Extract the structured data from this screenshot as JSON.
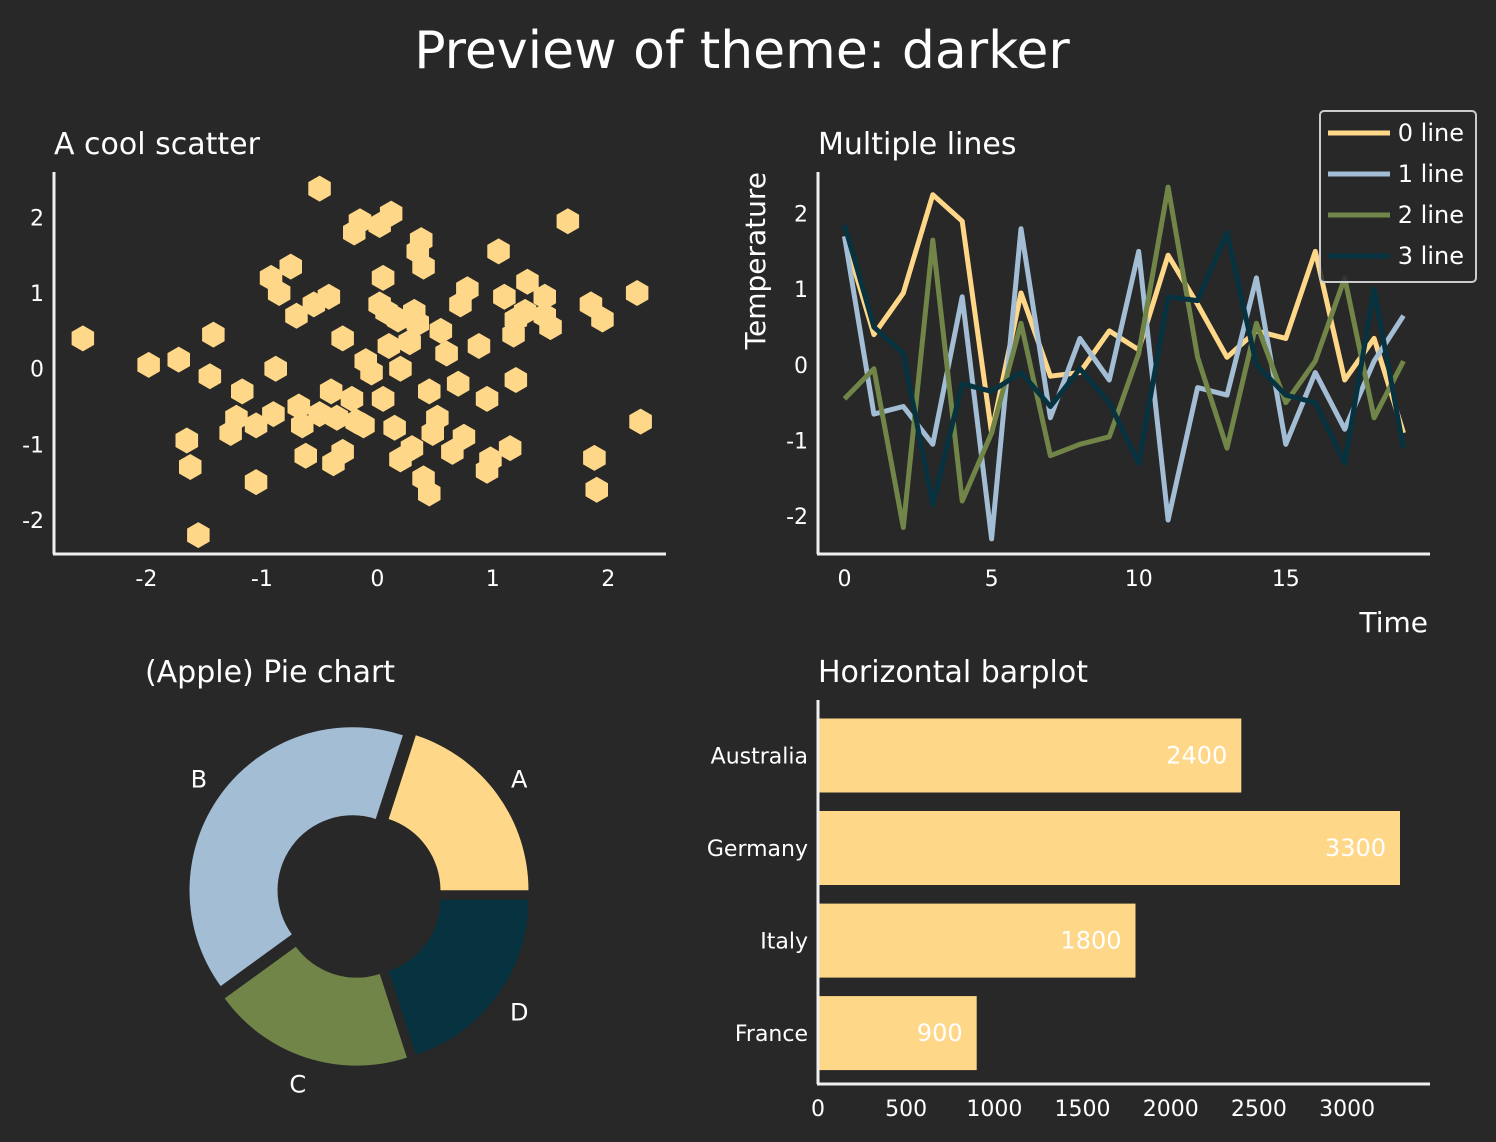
{
  "suptitle": "Preview of theme: darker",
  "colors": {
    "background": "#282828",
    "axis": "#f0f0f0",
    "palette": [
      "#ffd788",
      "#a3bdd5",
      "#718548",
      "#07323f"
    ]
  },
  "chart_data": [
    {
      "type": "scatter",
      "title": "A cool scatter",
      "xlabel": "",
      "ylabel": "",
      "xlim": [
        -2.8,
        2.5
      ],
      "ylim": [
        -2.45,
        2.6
      ],
      "xticks": [
        -2,
        -1,
        0,
        1,
        2
      ],
      "yticks": [
        -2,
        -1,
        0,
        1,
        2
      ],
      "marker": "hexagon",
      "color": "#ffd788",
      "points": [
        [
          -2.55,
          0.4
        ],
        [
          -1.98,
          0.05
        ],
        [
          -1.72,
          0.12
        ],
        [
          -1.42,
          0.45
        ],
        [
          -1.45,
          -0.1
        ],
        [
          -1.65,
          -0.95
        ],
        [
          -1.62,
          -1.3
        ],
        [
          -1.55,
          -2.2
        ],
        [
          -1.17,
          -0.3
        ],
        [
          -1.22,
          -0.65
        ],
        [
          -1.27,
          -0.85
        ],
        [
          -1.05,
          -0.75
        ],
        [
          -1.05,
          -1.5
        ],
        [
          -0.9,
          -0.6
        ],
        [
          -0.88,
          0.0
        ],
        [
          -0.92,
          1.2
        ],
        [
          -0.85,
          1.0
        ],
        [
          -0.75,
          1.35
        ],
        [
          -0.7,
          0.7
        ],
        [
          -0.68,
          -0.5
        ],
        [
          -0.65,
          -0.75
        ],
        [
          -0.62,
          -1.15
        ],
        [
          -0.5,
          -0.6
        ],
        [
          -0.5,
          2.38
        ],
        [
          -0.42,
          0.95
        ],
        [
          -0.4,
          -0.3
        ],
        [
          -0.35,
          -0.65
        ],
        [
          -0.38,
          -1.25
        ],
        [
          -0.3,
          -1.1
        ],
        [
          -0.3,
          0.4
        ],
        [
          -0.22,
          -0.4
        ],
        [
          -0.18,
          -0.7
        ],
        [
          -0.2,
          1.8
        ],
        [
          -0.15,
          1.95
        ],
        [
          -0.12,
          -0.75
        ],
        [
          -0.1,
          0.1
        ],
        [
          -0.05,
          -0.05
        ],
        [
          0.02,
          1.9
        ],
        [
          0.05,
          -0.4
        ],
        [
          0.02,
          0.85
        ],
        [
          0.05,
          1.2
        ],
        [
          0.08,
          0.75
        ],
        [
          0.1,
          0.3
        ],
        [
          0.12,
          2.05
        ],
        [
          0.15,
          -0.78
        ],
        [
          0.18,
          0.65
        ],
        [
          0.2,
          0.0
        ],
        [
          0.2,
          -1.2
        ],
        [
          0.28,
          0.35
        ],
        [
          0.3,
          -1.05
        ],
        [
          0.32,
          0.75
        ],
        [
          0.35,
          0.6
        ],
        [
          0.35,
          1.55
        ],
        [
          0.38,
          1.7
        ],
        [
          0.4,
          1.35
        ],
        [
          0.4,
          -1.45
        ],
        [
          0.45,
          -1.65
        ],
        [
          0.45,
          -0.3
        ],
        [
          0.48,
          -0.85
        ],
        [
          0.52,
          -0.65
        ],
        [
          0.55,
          0.5
        ],
        [
          0.65,
          -1.1
        ],
        [
          0.7,
          -0.2
        ],
        [
          0.72,
          0.85
        ],
        [
          0.78,
          1.05
        ],
        [
          0.75,
          -0.9
        ],
        [
          0.88,
          0.3
        ],
        [
          0.95,
          -0.4
        ],
        [
          0.95,
          -1.35
        ],
        [
          0.98,
          -1.2
        ],
        [
          1.05,
          1.55
        ],
        [
          1.1,
          0.95
        ],
        [
          1.15,
          -1.05
        ],
        [
          1.18,
          0.45
        ],
        [
          1.2,
          0.65
        ],
        [
          1.2,
          -0.15
        ],
        [
          1.3,
          1.15
        ],
        [
          1.45,
          0.95
        ],
        [
          1.45,
          0.7
        ],
        [
          1.5,
          0.55
        ],
        [
          1.65,
          1.95
        ],
        [
          1.85,
          0.85
        ],
        [
          1.95,
          0.65
        ],
        [
          1.88,
          -1.18
        ],
        [
          1.9,
          -1.6
        ],
        [
          2.25,
          1.0
        ],
        [
          2.28,
          -0.7
        ],
        [
          -0.55,
          0.85
        ],
        [
          0.6,
          0.2
        ],
        [
          1.28,
          0.75
        ]
      ]
    },
    {
      "type": "line",
      "title": "Multiple lines",
      "xlabel": "Time",
      "ylabel": "Temperature",
      "xlim": [
        -0.9,
        19.9
      ],
      "ylim": [
        -2.5,
        2.55
      ],
      "xticks": [
        0,
        5,
        10,
        15
      ],
      "yticks": [
        -2,
        -1,
        0,
        1,
        2
      ],
      "legend": "top-right",
      "x": [
        0,
        1,
        2,
        3,
        4,
        5,
        6,
        7,
        8,
        9,
        10,
        11,
        12,
        13,
        14,
        15,
        16,
        17,
        18,
        19
      ],
      "series": [
        {
          "name": "0 line",
          "color": "#ffd788",
          "values": [
            1.7,
            0.4,
            0.95,
            2.25,
            1.9,
            -0.9,
            0.95,
            -0.15,
            -0.1,
            0.45,
            0.2,
            1.45,
            0.8,
            0.1,
            0.45,
            0.35,
            1.5,
            -0.2,
            0.35,
            -0.9
          ]
        },
        {
          "name": "1 line",
          "color": "#a3bdd5",
          "values": [
            1.7,
            -0.65,
            -0.55,
            -1.05,
            0.9,
            -2.3,
            1.8,
            -0.7,
            0.35,
            -0.2,
            1.5,
            -2.05,
            -0.3,
            -0.4,
            1.15,
            -1.05,
            -0.1,
            -0.85,
            0.05,
            0.65
          ]
        },
        {
          "name": "2 line",
          "color": "#718548",
          "values": [
            -0.45,
            -0.05,
            -2.15,
            1.65,
            -1.8,
            -0.9,
            0.55,
            -1.2,
            -1.05,
            -0.95,
            0.15,
            2.35,
            0.1,
            -1.1,
            0.55,
            -0.5,
            0.05,
            1.15,
            -0.7,
            0.05
          ]
        },
        {
          "name": "3 line",
          "color": "#07323f",
          "values": [
            1.85,
            0.5,
            0.15,
            -1.85,
            -0.25,
            -0.35,
            -0.1,
            -0.55,
            -0.05,
            -0.5,
            -1.3,
            0.9,
            0.85,
            1.75,
            0.0,
            -0.4,
            -0.5,
            -1.3,
            1.0,
            -1.1
          ]
        }
      ]
    },
    {
      "type": "pie",
      "title": "(Apple) Pie chart",
      "categories": [
        "A",
        "B",
        "C",
        "D"
      ],
      "values": [
        20,
        40,
        20,
        20
      ],
      "colors": [
        "#ffd788",
        "#a3bdd5",
        "#718548",
        "#07323f"
      ],
      "donut": true,
      "exploded": true
    },
    {
      "type": "bar",
      "orientation": "horizontal",
      "title": "Horizontal barplot",
      "categories": [
        "Australia",
        "Germany",
        "Italy",
        "France"
      ],
      "values": [
        2400,
        3300,
        1800,
        900
      ],
      "color": "#ffd788",
      "xlim": [
        0,
        3470
      ],
      "xticks": [
        0,
        500,
        1000,
        1500,
        2000,
        2500,
        3000
      ],
      "data_labels": true
    }
  ]
}
